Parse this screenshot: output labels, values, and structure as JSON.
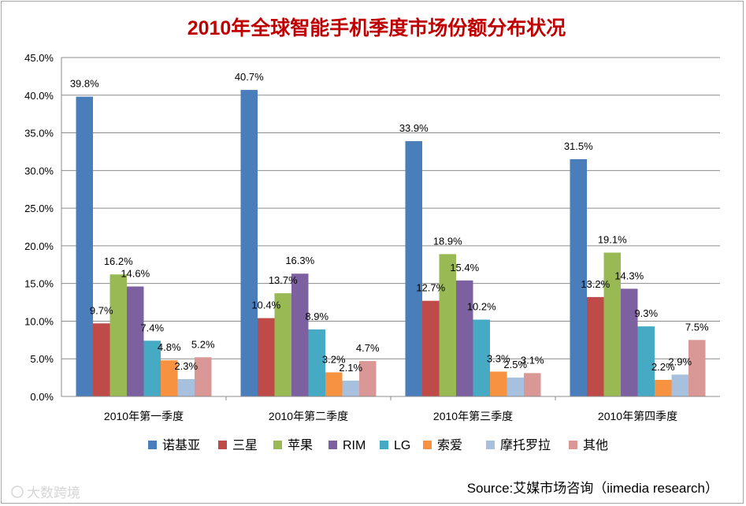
{
  "chart_data": {
    "type": "bar",
    "title": "2010年全球智能手机季度市场份额分布状况",
    "categories": [
      "2010年第一季度",
      "2010年第二季度",
      "2010年第三季度",
      "2010年第四季度"
    ],
    "ylim": [
      0,
      45
    ],
    "ytick_step": 5,
    "ytick_labels": [
      "0.0%",
      "5.0%",
      "10.0%",
      "15.0%",
      "20.0%",
      "25.0%",
      "30.0%",
      "35.0%",
      "40.0%",
      "45.0%"
    ],
    "grid": true,
    "legend_position": "bottom",
    "series": [
      {
        "name": "诺基亚",
        "color": "#4a7ebb",
        "values": [
          39.8,
          40.7,
          33.9,
          31.5
        ],
        "labels": [
          "39.8%",
          "40.7%",
          "33.9%",
          "31.5%"
        ]
      },
      {
        "name": "三星",
        "color": "#be4b48",
        "values": [
          9.7,
          10.4,
          12.7,
          13.2
        ],
        "labels": [
          "9.7%",
          "10.4%",
          "12.7%",
          "13.2%"
        ]
      },
      {
        "name": "苹果",
        "color": "#98b954",
        "values": [
          16.2,
          13.7,
          18.9,
          19.1
        ],
        "labels": [
          "16.2%",
          "13.7%",
          "18.9%",
          "19.1%"
        ]
      },
      {
        "name": "RIM",
        "color": "#7d60a0",
        "values": [
          14.6,
          16.3,
          15.4,
          14.3
        ],
        "labels": [
          "14.6%",
          "16.3%",
          "15.4%",
          "14.3%"
        ]
      },
      {
        "name": "LG",
        "color": "#46aac5",
        "values": [
          7.4,
          8.9,
          10.2,
          9.3
        ],
        "labels": [
          "7.4%",
          "8.9%",
          "10.2%",
          "9.3%"
        ]
      },
      {
        "name": "索爱",
        "color": "#f69240",
        "values": [
          4.8,
          3.2,
          3.3,
          2.2
        ],
        "labels": [
          "4.8%",
          "3.2%",
          "3.3%",
          "2.2%"
        ]
      },
      {
        "name": "摩托罗拉",
        "color": "#a7c0de",
        "values": [
          2.3,
          2.1,
          2.5,
          2.9
        ],
        "labels": [
          "2.3%",
          "2.1%",
          "2.5%",
          "2.9%"
        ]
      },
      {
        "name": "其他",
        "color": "#d99795",
        "values": [
          5.2,
          4.7,
          3.1,
          7.5
        ],
        "labels": [
          "5.2%",
          "4.7%",
          "3.1%",
          "7.5%"
        ]
      }
    ],
    "source": "Source:艾媒市场咨询（iimedia research）",
    "watermark": "大数跨境",
    "title_color": "#c00000"
  }
}
